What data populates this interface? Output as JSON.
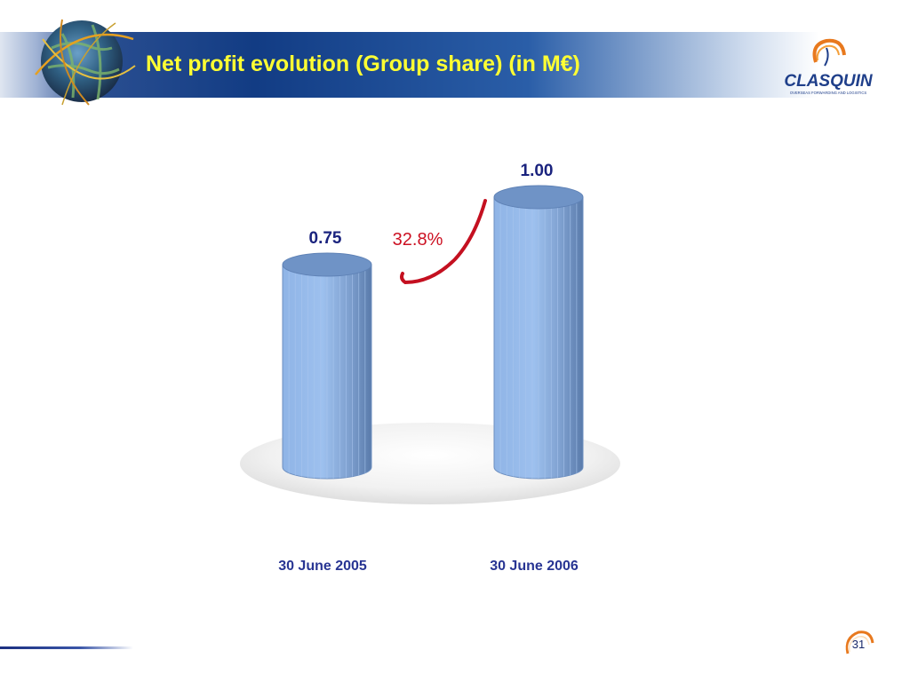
{
  "header": {
    "title": "Net profit evolution (Group share) (in M€)",
    "logo_text": "CLASQUIN",
    "logo_tagline": "OVERSEAS FORWARDING AND LOGISTICS"
  },
  "colors": {
    "title": "#ffff33",
    "header_blue": "#123c84",
    "bar_fill": "#8fb4e6",
    "value_label": "#1a237e",
    "growth_label": "#cc1122",
    "category_label": "#283593"
  },
  "chart_data": {
    "type": "bar",
    "style": "3d-cylinder",
    "categories": [
      "30 June 2005",
      "30 June 2006"
    ],
    "values": [
      0.75,
      1.0
    ],
    "data_labels": [
      "0.75",
      "1.00"
    ],
    "annotation": "32.8%",
    "title": "",
    "xlabel": "",
    "ylabel": "",
    "ylim": [
      0,
      1.1
    ],
    "grid": false,
    "legend": "none"
  },
  "footer": {
    "page_number": "31"
  }
}
